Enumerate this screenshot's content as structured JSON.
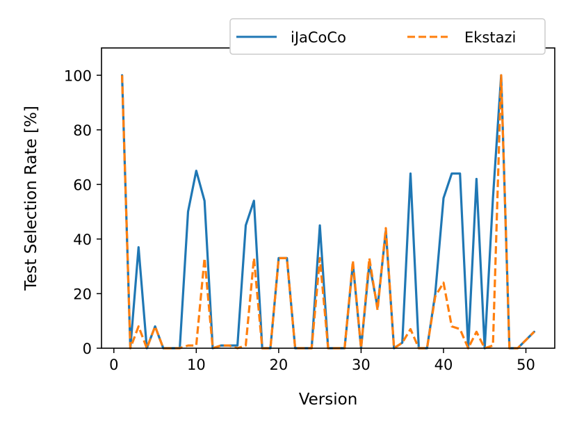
{
  "chart_data": {
    "type": "line",
    "title": "",
    "xlabel": "Version",
    "ylabel": "Test Selection Rate [%]",
    "xlim": [
      -1.5,
      53.5
    ],
    "ylim": [
      0,
      110
    ],
    "xticks": [
      0,
      10,
      20,
      30,
      40,
      50
    ],
    "yticks": [
      0,
      20,
      40,
      60,
      80,
      100
    ],
    "grid": false,
    "legend_position": "top-right",
    "x": [
      1,
      2,
      3,
      4,
      5,
      6,
      7,
      8,
      9,
      10,
      11,
      12,
      13,
      14,
      15,
      16,
      17,
      18,
      19,
      20,
      21,
      22,
      23,
      24,
      25,
      26,
      27,
      28,
      29,
      30,
      31,
      32,
      33,
      34,
      35,
      36,
      37,
      38,
      39,
      40,
      41,
      42,
      43,
      44,
      45,
      46,
      47,
      48,
      49,
      50,
      51
    ],
    "series": [
      {
        "name": "iJaCoCo",
        "color": "#1f77b4",
        "style": "solid",
        "values": [
          100,
          0,
          37,
          0,
          8,
          0,
          0,
          0,
          50,
          65,
          54,
          0,
          1,
          1,
          1,
          45,
          54,
          0,
          0,
          33,
          33,
          0,
          0,
          0,
          45,
          0,
          0,
          0,
          31,
          0,
          31,
          15,
          43,
          0,
          2,
          64,
          0,
          0,
          20,
          55,
          64,
          64,
          0,
          62,
          0,
          55,
          100,
          0,
          0,
          3,
          6
        ]
      },
      {
        "name": "Ekstazi",
        "color": "#ff7f0e",
        "style": "dashed",
        "values": [
          100,
          0,
          8,
          0,
          8,
          0,
          0,
          0,
          1,
          1,
          33,
          0,
          1,
          1,
          0,
          1,
          33,
          0,
          0,
          33,
          33,
          0,
          0,
          0,
          33,
          0,
          0,
          0,
          32,
          0,
          33,
          14,
          44,
          0,
          2,
          7,
          0,
          0,
          19,
          24,
          8,
          7,
          0,
          6,
          0,
          1,
          100,
          0,
          0,
          3,
          6
        ]
      }
    ]
  }
}
